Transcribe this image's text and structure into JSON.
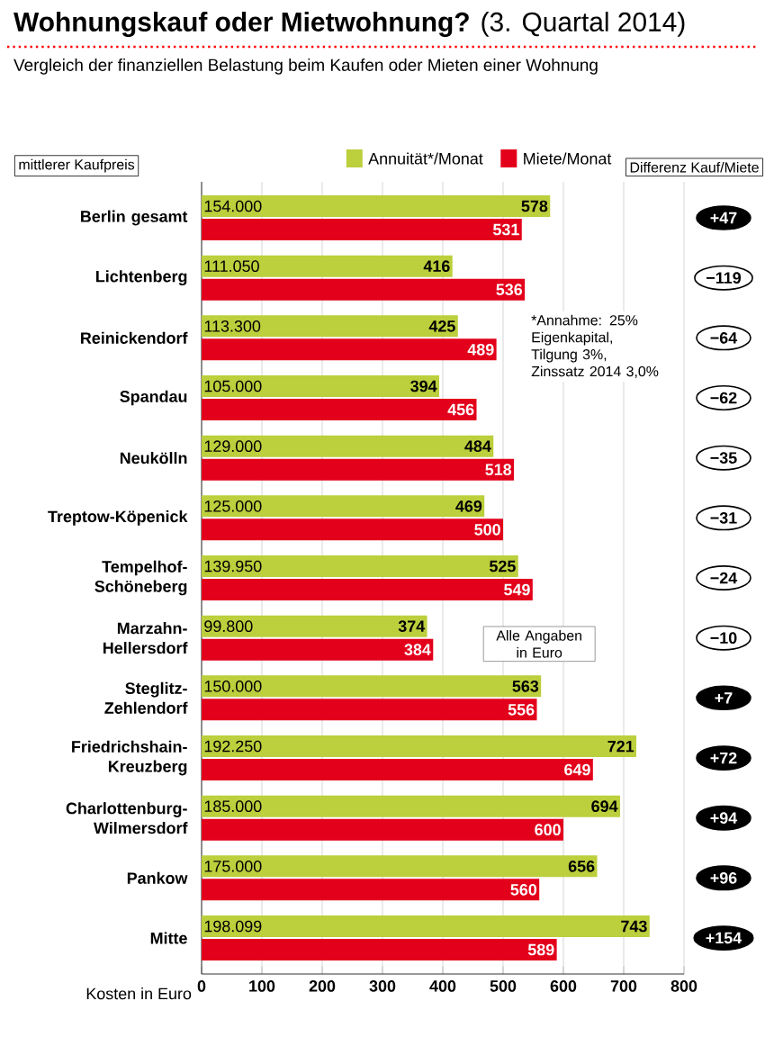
{
  "chart_data": {
    "type": "bar",
    "orientation": "horizontal",
    "title": "**Wohnungskauf oder Mietwohnung?** (3. Quartal 2014)",
    "subtitle": "Vergleich der finanziellen Belastung beim Kaufen oder Mieten einer Wohnung",
    "xlabel": "Kosten in Euro",
    "categories": [
      "Berlin gesamt",
      "Lichtenberg",
      "Reinickendorf",
      "Spandau",
      "Neukölln",
      "Treptow-Köpenick",
      "Tempelhof-Schöneberg",
      "Marzahn-Hellersdorf",
      "Steglitz-Zehlendorf",
      "Friedrichshain-Kreuzberg",
      "Charlottenburg-Wilmersdorf",
      "Pankow",
      "Mitte"
    ],
    "series": [
      {
        "name": "Annuität*/Monat",
        "color": "#bccf3c",
        "values": [
          578,
          416,
          425,
          394,
          484,
          469,
          525,
          374,
          563,
          721,
          694,
          656,
          743
        ]
      },
      {
        "name": "Miete/Monat",
        "color": "#e3001b",
        "values": [
          531,
          536,
          489,
          456,
          518,
          500,
          549,
          384,
          556,
          649,
          600,
          560,
          589
        ]
      }
    ],
    "xlim": [
      0,
      800
    ],
    "xticks": [
      0,
      100,
      200,
      300,
      400,
      500,
      600,
      700,
      800
    ],
    "grid": "x",
    "legend": "top",
    "data_labels": true,
    "annotations": [
      "mittlerer Kaufpreis",
      "Differenz Kauf/Miete",
      "154.000",
      "111.050",
      "113.300",
      "105.000",
      "129.000",
      "125.000",
      "139.950",
      "99.800",
      "150.000",
      "192.250",
      "185.000",
      "175.000",
      "198.099",
      "+47",
      "−119",
      "−64",
      "−62",
      "−35",
      "−31",
      "−24",
      "−10",
      "+7",
      "+72",
      "+94",
      "+96",
      "+154",
      "*Annahme: 25% Eigenkapital, Tilgung 3%, Zinssatz 2014 3,0%",
      "Alle Angaben in Euro"
    ]
  }
}
